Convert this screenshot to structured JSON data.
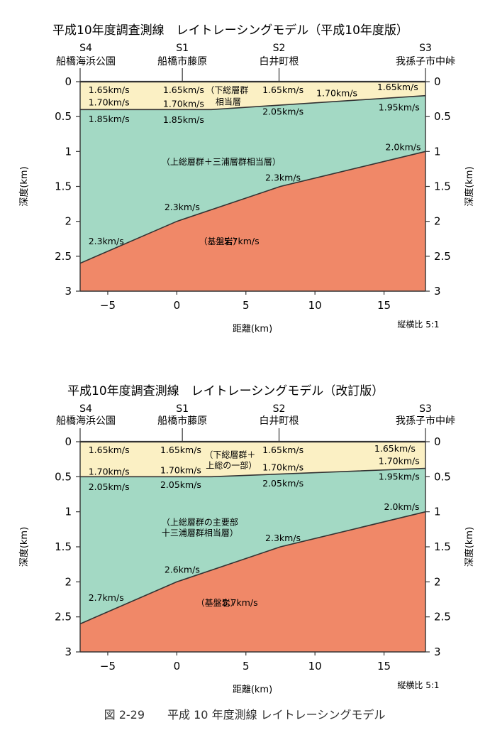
{
  "caption": "図 2-29　　平成 10 年度測線 レイトレーシングモデル",
  "colors": {
    "layer1": "#fbf0c4",
    "layer2": "#a3d9c4",
    "basement": "#f08868",
    "line": "#333333"
  },
  "chart_data": [
    {
      "type": "area",
      "title": "平成10年度調査測線　レイトレーシングモデル（平成10年度版）",
      "xlabel": "距離(km)",
      "ylabel_left": "深度(km)",
      "ylabel_right": "深度(km)",
      "aspect_note": "縦横比 5:1",
      "xlim": [
        -7,
        18
      ],
      "ylim": [
        0,
        3
      ],
      "x_ticks": [
        {
          "value": -5,
          "label": "−5"
        },
        {
          "value": 0,
          "label": "0"
        },
        {
          "value": 5,
          "label": "5"
        },
        {
          "value": 10,
          "label": "10"
        },
        {
          "value": 15,
          "label": "15"
        }
      ],
      "y_ticks": [
        {
          "value": 0,
          "label": "0"
        },
        {
          "value": 0.5,
          "label": "0.5"
        },
        {
          "value": 1,
          "label": "1"
        },
        {
          "value": 1.5,
          "label": "1.5"
        },
        {
          "value": 2,
          "label": "2"
        },
        {
          "value": 2.5,
          "label": "2.5"
        },
        {
          "value": 3,
          "label": "3"
        }
      ],
      "stations": [
        {
          "code": "S4",
          "name": "船橋海浜公園",
          "x": -7
        },
        {
          "code": "S1",
          "name": "船橋市藤原",
          "x": 0.4
        },
        {
          "code": "S2",
          "name": "白井町根",
          "x": 7.4
        },
        {
          "code": "S3",
          "name": "我孫子市中峠",
          "x": 18
        }
      ],
      "boundaries": [
        {
          "name": "layer1-base",
          "points": [
            [
              -7,
              0.4
            ],
            [
              2.5,
              0.4
            ],
            [
              18,
              0.2
            ]
          ]
        },
        {
          "name": "basement-top",
          "points": [
            [
              -7,
              2.6
            ],
            [
              0,
              2.0
            ],
            [
              7.5,
              1.5
            ],
            [
              18,
              1.0
            ]
          ]
        }
      ],
      "velocity_labels": [
        {
          "text": "1.65km/s",
          "x": -6.4,
          "y": 0.12
        },
        {
          "text": "1.70km/s",
          "x": -6.4,
          "y": 0.3
        },
        {
          "text": "1.85km/s",
          "x": -6.4,
          "y": 0.54
        },
        {
          "text": "1.65km/s",
          "x": -1.0,
          "y": 0.12
        },
        {
          "text": "1.70km/s",
          "x": -1.0,
          "y": 0.32
        },
        {
          "text": "1.85km/s",
          "x": -1.0,
          "y": 0.55
        },
        {
          "text": "1.65km/s",
          "x": 6.2,
          "y": 0.12
        },
        {
          "text": "1.70km/s",
          "x": 10.1,
          "y": 0.17
        },
        {
          "text": "2.05km/s",
          "x": 6.2,
          "y": 0.43
        },
        {
          "text": "1.65km/s",
          "x": 14.5,
          "y": 0.08
        },
        {
          "text": "1.95km/s",
          "x": 14.6,
          "y": 0.37
        },
        {
          "text": "2.0km/s",
          "x": 15.1,
          "y": 0.94
        },
        {
          "text": "2.3km/s",
          "x": 6.4,
          "y": 1.38
        },
        {
          "text": "2.3km/s",
          "x": -0.9,
          "y": 1.8
        },
        {
          "text": "2.3km/s",
          "x": -6.4,
          "y": 2.29
        },
        {
          "text": "5.7km/s",
          "x": 3.4,
          "y": 2.29
        }
      ],
      "annotations": [
        {
          "text": "（下総層群",
          "x": 2.1,
          "y": 0.12
        },
        {
          "text": "相当層",
          "x": 2.8,
          "y": 0.29
        },
        {
          "text": "（上総層群＋三浦層群相当層）",
          "x": -1.1,
          "y": 1.15
        },
        {
          "text": "（基盤岩）",
          "x": 1.6,
          "y": 2.29
        }
      ]
    },
    {
      "type": "area",
      "title": "平成10年度調査測線　レイトレーシングモデル（改訂版）",
      "xlabel": "距離(km)",
      "ylabel_left": "深度(km)",
      "ylabel_right": "深度(km)",
      "aspect_note": "縦横比 5:1",
      "xlim": [
        -7,
        18
      ],
      "ylim": [
        0,
        3
      ],
      "x_ticks": [
        {
          "value": -5,
          "label": "−5"
        },
        {
          "value": 0,
          "label": "0"
        },
        {
          "value": 5,
          "label": "5"
        },
        {
          "value": 10,
          "label": "10"
        },
        {
          "value": 15,
          "label": "15"
        }
      ],
      "y_ticks": [
        {
          "value": 0,
          "label": "0"
        },
        {
          "value": 0.5,
          "label": "0.5"
        },
        {
          "value": 1,
          "label": "1"
        },
        {
          "value": 1.5,
          "label": "1.5"
        },
        {
          "value": 2,
          "label": "2"
        },
        {
          "value": 2.5,
          "label": "2.5"
        },
        {
          "value": 3,
          "label": "3"
        }
      ],
      "stations": [
        {
          "code": "S4",
          "name": "船橋海浜公園",
          "x": -7
        },
        {
          "code": "S1",
          "name": "船橋市藤原",
          "x": 0.4
        },
        {
          "code": "S2",
          "name": "白井町根",
          "x": 7.4
        },
        {
          "code": "S3",
          "name": "我孫子市中峠",
          "x": 18
        }
      ],
      "boundaries": [
        {
          "name": "layer1-base",
          "points": [
            [
              -7,
              0.5
            ],
            [
              2.5,
              0.5
            ],
            [
              18,
              0.38
            ]
          ]
        },
        {
          "name": "basement-top",
          "points": [
            [
              -7,
              2.6
            ],
            [
              0,
              2.0
            ],
            [
              7.5,
              1.5
            ],
            [
              18,
              1.0
            ]
          ]
        }
      ],
      "velocity_labels": [
        {
          "text": "1.65km/s",
          "x": -6.4,
          "y": 0.12
        },
        {
          "text": "1.70km/s",
          "x": -6.4,
          "y": 0.43
        },
        {
          "text": "2.05km/s",
          "x": -6.4,
          "y": 0.65
        },
        {
          "text": "1.65km/s",
          "x": -1.2,
          "y": 0.12
        },
        {
          "text": "1.70km/s",
          "x": -1.2,
          "y": 0.41
        },
        {
          "text": "2.05km/s",
          "x": -1.2,
          "y": 0.62
        },
        {
          "text": "1.65km/s",
          "x": 6.2,
          "y": 0.12
        },
        {
          "text": "1.70km/s",
          "x": 6.2,
          "y": 0.37
        },
        {
          "text": "2.05km/s",
          "x": 6.2,
          "y": 0.6
        },
        {
          "text": "1.65km/s",
          "x": 14.3,
          "y": 0.1
        },
        {
          "text": "1.70km/s",
          "x": 14.6,
          "y": 0.28
        },
        {
          "text": "1.95km/s",
          "x": 14.6,
          "y": 0.5
        },
        {
          "text": "2.0km/s",
          "x": 15.0,
          "y": 0.93
        },
        {
          "text": "2.3km/s",
          "x": 6.4,
          "y": 1.38
        },
        {
          "text": "2.6km/s",
          "x": -0.9,
          "y": 1.83
        },
        {
          "text": "2.7km/s",
          "x": -6.4,
          "y": 2.23
        },
        {
          "text": "5.7km/s",
          "x": 3.3,
          "y": 2.3
        }
      ],
      "annotations": [
        {
          "text": "（下総層群＋",
          "x": 2.0,
          "y": 0.19
        },
        {
          "text": "上総の一部）",
          "x": 2.1,
          "y": 0.34
        },
        {
          "text": "（上総層群の主要部",
          "x": -1.1,
          "y": 1.15
        },
        {
          "text": "十三浦層群相当層）",
          "x": -1.1,
          "y": 1.3
        },
        {
          "text": "（基盤岩）",
          "x": 1.4,
          "y": 2.3
        }
      ]
    }
  ]
}
